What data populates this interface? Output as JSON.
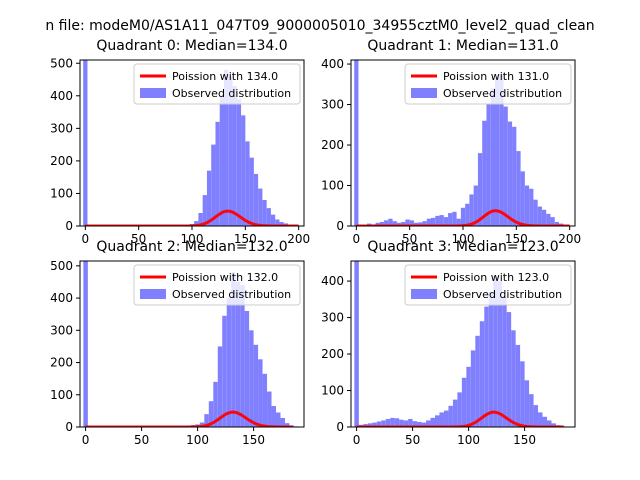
{
  "figure": {
    "suptitle": "n file: modeM0/AS1A11_047T09_9000005010_34955cztM0_level2_quad_clean"
  },
  "colors": {
    "hist": "#8080ff",
    "poisson": "#ff0000",
    "axes": "#000000",
    "background": "#ffffff"
  },
  "chart_data": [
    {
      "type": "bar",
      "title": "Quadrant 0: Median=134.0",
      "xlim": [
        -5,
        205
      ],
      "ylim": [
        0,
        510
      ],
      "xticks": [
        0,
        50,
        100,
        150,
        200
      ],
      "yticks": [
        0,
        100,
        200,
        300,
        400,
        500
      ],
      "bin_width": 4,
      "series": [
        {
          "name": "Observed distribution",
          "type": "hist",
          "bins": [
            [
              -2,
              510
            ],
            [
              2,
              1
            ],
            [
              6,
              1
            ],
            [
              10,
              1
            ],
            [
              14,
              1
            ],
            [
              18,
              1
            ],
            [
              22,
              1
            ],
            [
              26,
              1
            ],
            [
              30,
              1
            ],
            [
              34,
              1
            ],
            [
              38,
              1
            ],
            [
              42,
              1
            ],
            [
              46,
              1
            ],
            [
              50,
              1
            ],
            [
              54,
              1
            ],
            [
              58,
              1
            ],
            [
              62,
              1
            ],
            [
              66,
              1
            ],
            [
              70,
              1
            ],
            [
              74,
              1
            ],
            [
              78,
              1
            ],
            [
              82,
              1
            ],
            [
              86,
              2
            ],
            [
              90,
              2
            ],
            [
              94,
              3
            ],
            [
              98,
              6
            ],
            [
              102,
              15
            ],
            [
              106,
              40
            ],
            [
              110,
              95
            ],
            [
              114,
              170
            ],
            [
              118,
              250
            ],
            [
              122,
              320
            ],
            [
              126,
              400
            ],
            [
              130,
              480
            ],
            [
              134,
              460
            ],
            [
              138,
              430
            ],
            [
              142,
              390
            ],
            [
              146,
              340
            ],
            [
              150,
              260
            ],
            [
              154,
              210
            ],
            [
              158,
              160
            ],
            [
              162,
              115
            ],
            [
              166,
              80
            ],
            [
              170,
              55
            ],
            [
              174,
              35
            ],
            [
              178,
              20
            ],
            [
              182,
              12
            ],
            [
              186,
              8
            ],
            [
              190,
              4
            ],
            [
              194,
              2
            ],
            [
              198,
              1
            ]
          ]
        },
        {
          "name": "Poission with 134.0",
          "type": "poisson",
          "mean": 134.0,
          "x_range": [
            0,
            200
          ],
          "scale": 1330
        }
      ],
      "legend": [
        "Poission with 134.0",
        "Observed distribution"
      ],
      "legend_loc": "upper right"
    },
    {
      "type": "bar",
      "title": "Quadrant 1: Median=131.0",
      "xlim": [
        -5,
        205
      ],
      "ylim": [
        0,
        410
      ],
      "xticks": [
        0,
        50,
        100,
        150,
        200
      ],
      "yticks": [
        0,
        100,
        200,
        300,
        400
      ],
      "bin_width": 4,
      "series": [
        {
          "name": "Observed distribution",
          "type": "hist",
          "bins": [
            [
              -2,
              410
            ],
            [
              2,
              3
            ],
            [
              6,
              3
            ],
            [
              10,
              6
            ],
            [
              14,
              4
            ],
            [
              18,
              8
            ],
            [
              22,
              10
            ],
            [
              26,
              14
            ],
            [
              30,
              18
            ],
            [
              34,
              12
            ],
            [
              38,
              8
            ],
            [
              42,
              10
            ],
            [
              46,
              16
            ],
            [
              50,
              14
            ],
            [
              54,
              8
            ],
            [
              58,
              9
            ],
            [
              62,
              12
            ],
            [
              66,
              18
            ],
            [
              70,
              20
            ],
            [
              74,
              25
            ],
            [
              78,
              27
            ],
            [
              82,
              22
            ],
            [
              86,
              32
            ],
            [
              90,
              35
            ],
            [
              94,
              18
            ],
            [
              98,
              45
            ],
            [
              102,
              55
            ],
            [
              106,
              78
            ],
            [
              110,
              100
            ],
            [
              114,
              180
            ],
            [
              118,
              260
            ],
            [
              122,
              300
            ],
            [
              126,
              340
            ],
            [
              130,
              365
            ],
            [
              134,
              375
            ],
            [
              138,
              295
            ],
            [
              142,
              258
            ],
            [
              146,
              245
            ],
            [
              150,
              185
            ],
            [
              154,
              135
            ],
            [
              158,
              100
            ],
            [
              162,
              92
            ],
            [
              166,
              65
            ],
            [
              170,
              48
            ],
            [
              174,
              40
            ],
            [
              178,
              30
            ],
            [
              182,
              22
            ],
            [
              186,
              10
            ],
            [
              190,
              6
            ],
            [
              194,
              3
            ],
            [
              198,
              1
            ]
          ]
        },
        {
          "name": "Poission with 131.0",
          "type": "poisson",
          "mean": 131.0,
          "x_range": [
            0,
            200
          ],
          "scale": 1080
        }
      ],
      "legend": [
        "Poission with 131.0",
        "Observed distribution"
      ],
      "legend_loc": "upper right"
    },
    {
      "type": "bar",
      "title": "Quadrant 2: Median=132.0",
      "xlim": [
        -5,
        195
      ],
      "ylim": [
        0,
        515
      ],
      "xticks": [
        0,
        50,
        100,
        150
      ],
      "yticks": [
        0,
        100,
        200,
        300,
        400,
        500
      ],
      "bin_width": 4,
      "series": [
        {
          "name": "Observed distribution",
          "type": "hist",
          "bins": [
            [
              -2,
              515
            ],
            [
              2,
              1
            ],
            [
              6,
              1
            ],
            [
              10,
              1
            ],
            [
              14,
              1
            ],
            [
              18,
              1
            ],
            [
              22,
              1
            ],
            [
              26,
              1
            ],
            [
              30,
              1
            ],
            [
              34,
              1
            ],
            [
              38,
              1
            ],
            [
              42,
              1
            ],
            [
              46,
              1
            ],
            [
              50,
              1
            ],
            [
              54,
              1
            ],
            [
              58,
              1
            ],
            [
              62,
              1
            ],
            [
              66,
              1
            ],
            [
              70,
              2
            ],
            [
              74,
              3
            ],
            [
              78,
              2
            ],
            [
              82,
              2
            ],
            [
              86,
              3
            ],
            [
              90,
              4
            ],
            [
              94,
              6
            ],
            [
              98,
              8
            ],
            [
              102,
              14
            ],
            [
              106,
              40
            ],
            [
              110,
              80
            ],
            [
              114,
              140
            ],
            [
              118,
              250
            ],
            [
              122,
              345
            ],
            [
              126,
              400
            ],
            [
              130,
              480
            ],
            [
              134,
              450
            ],
            [
              138,
              440
            ],
            [
              142,
              360
            ],
            [
              146,
              300
            ],
            [
              150,
              255
            ],
            [
              154,
              210
            ],
            [
              158,
              165
            ],
            [
              162,
              110
            ],
            [
              166,
              65
            ],
            [
              170,
              45
            ],
            [
              174,
              28
            ],
            [
              178,
              12
            ],
            [
              182,
              5
            ],
            [
              186,
              2
            ]
          ]
        },
        {
          "name": "Poission with 132.0",
          "type": "poisson",
          "mean": 132.0,
          "x_range": [
            0,
            185
          ],
          "scale": 1330
        }
      ],
      "legend": [
        "Poission with 132.0",
        "Observed distribution"
      ],
      "legend_loc": "upper right"
    },
    {
      "type": "bar",
      "title": "Quadrant 3: Median=123.0",
      "xlim": [
        -5,
        195
      ],
      "ylim": [
        0,
        455
      ],
      "xticks": [
        0,
        50,
        100,
        150
      ],
      "yticks": [
        0,
        100,
        200,
        300,
        400
      ],
      "bin_width": 4,
      "series": [
        {
          "name": "Observed distribution",
          "type": "hist",
          "bins": [
            [
              -2,
              455
            ],
            [
              2,
              6
            ],
            [
              6,
              8
            ],
            [
              10,
              10
            ],
            [
              14,
              12
            ],
            [
              18,
              15
            ],
            [
              22,
              18
            ],
            [
              26,
              22
            ],
            [
              30,
              25
            ],
            [
              34,
              24
            ],
            [
              38,
              20
            ],
            [
              42,
              18
            ],
            [
              46,
              22
            ],
            [
              50,
              16
            ],
            [
              54,
              14
            ],
            [
              58,
              12
            ],
            [
              62,
              18
            ],
            [
              66,
              25
            ],
            [
              70,
              32
            ],
            [
              74,
              40
            ],
            [
              78,
              45
            ],
            [
              82,
              58
            ],
            [
              86,
              75
            ],
            [
              90,
              95
            ],
            [
              94,
              135
            ],
            [
              98,
              165
            ],
            [
              102,
              210
            ],
            [
              106,
              250
            ],
            [
              110,
              290
            ],
            [
              114,
              330
            ],
            [
              118,
              370
            ],
            [
              122,
              415
            ],
            [
              126,
              400
            ],
            [
              130,
              355
            ],
            [
              134,
              315
            ],
            [
              138,
              265
            ],
            [
              142,
              225
            ],
            [
              146,
              180
            ],
            [
              150,
              128
            ],
            [
              154,
              90
            ],
            [
              158,
              60
            ],
            [
              162,
              40
            ],
            [
              166,
              28
            ],
            [
              170,
              18
            ],
            [
              174,
              10
            ],
            [
              178,
              5
            ],
            [
              182,
              2
            ]
          ]
        },
        {
          "name": "Poission with 123.0",
          "type": "poisson",
          "mean": 123.0,
          "x_range": [
            0,
            185
          ],
          "scale": 1130
        }
      ],
      "legend": [
        "Poission with 123.0",
        "Observed distribution"
      ],
      "legend_loc": "upper right"
    }
  ]
}
